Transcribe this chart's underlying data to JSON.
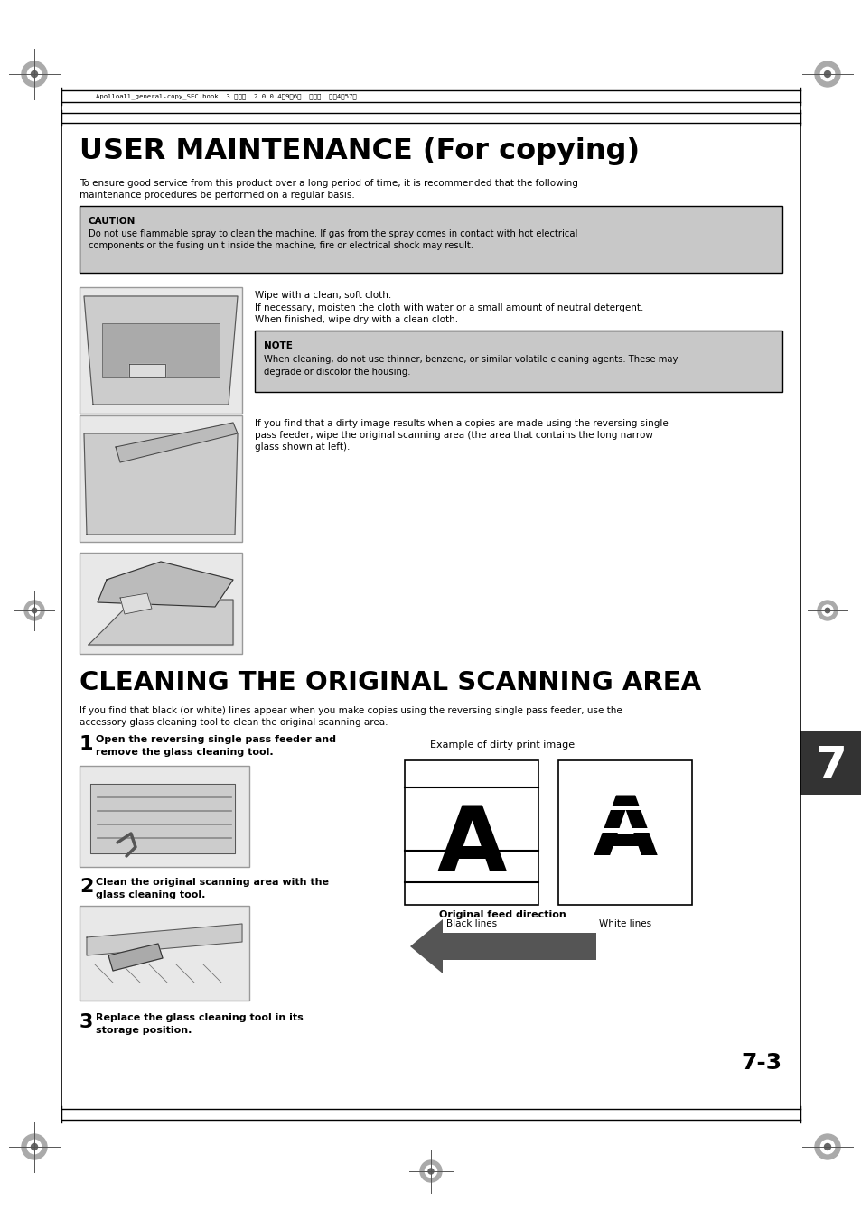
{
  "bg_color": "#ffffff",
  "page_width": 9.54,
  "page_height": 13.51,
  "header_text": "Apolloall_general-copy_SEC.book  3 ページ  2 0 0 4年9月6日  月曜日  午後4時57分",
  "title1": "USER MAINTENANCE (For copying)",
  "body1_l1": "To ensure good service from this product over a long period of time, it is recommended that the following",
  "body1_l2": "maintenance procedures be performed on a regular basis.",
  "caution_label": "CAUTION",
  "caution_l1": "Do not use flammable spray to clean the machine. If gas from the spray comes in contact with hot electrical",
  "caution_l2": "components or the fusing unit inside the machine, fire or electrical shock may result.",
  "img1_text1": "Wipe with a clean, soft cloth.",
  "img1_text2": "If necessary, moisten the cloth with water or a small amount of neutral detergent.",
  "img1_text3": "When finished, wipe dry with a clean cloth.",
  "note_label": "NOTE",
  "note_l1": "When cleaning, do not use thinner, benzene, or similar volatile cleaning agents. These may",
  "note_l2": "degrade or discolor the housing.",
  "img2_l1": "If you find that a dirty image results when a copies are made using the reversing single",
  "img2_l2": "pass feeder, wipe the original scanning area (the area that contains the long narrow",
  "img2_l3": "glass shown at left).",
  "title2": "CLEANING THE ORIGINAL SCANNING AREA",
  "body2_l1": "If you find that black (or white) lines appear when you make copies using the reversing single pass feeder, use the",
  "body2_l2": "accessory glass cleaning tool to clean the original scanning area.",
  "step1_num": "1",
  "step1_l1": "Open the reversing single pass feeder and",
  "step1_l2": "remove the glass cleaning tool.",
  "step2_num": "2",
  "step2_l1": "Clean the original scanning area with the",
  "step2_l2": "glass cleaning tool.",
  "step3_num": "3",
  "step3_l1": "Replace the glass cleaning tool in its",
  "step3_l2": "storage position.",
  "example_label": "Example of dirty print image",
  "black_lines_label": "Black lines",
  "white_lines_label": "White lines",
  "original_feed_label": "Original feed direction",
  "section_num": "7",
  "page_num": "7-3",
  "gray_color": "#c8c8c8",
  "note_gray": "#b8b8b8",
  "dark_gray": "#555555",
  "section_bg": "#333333",
  "black": "#000000"
}
